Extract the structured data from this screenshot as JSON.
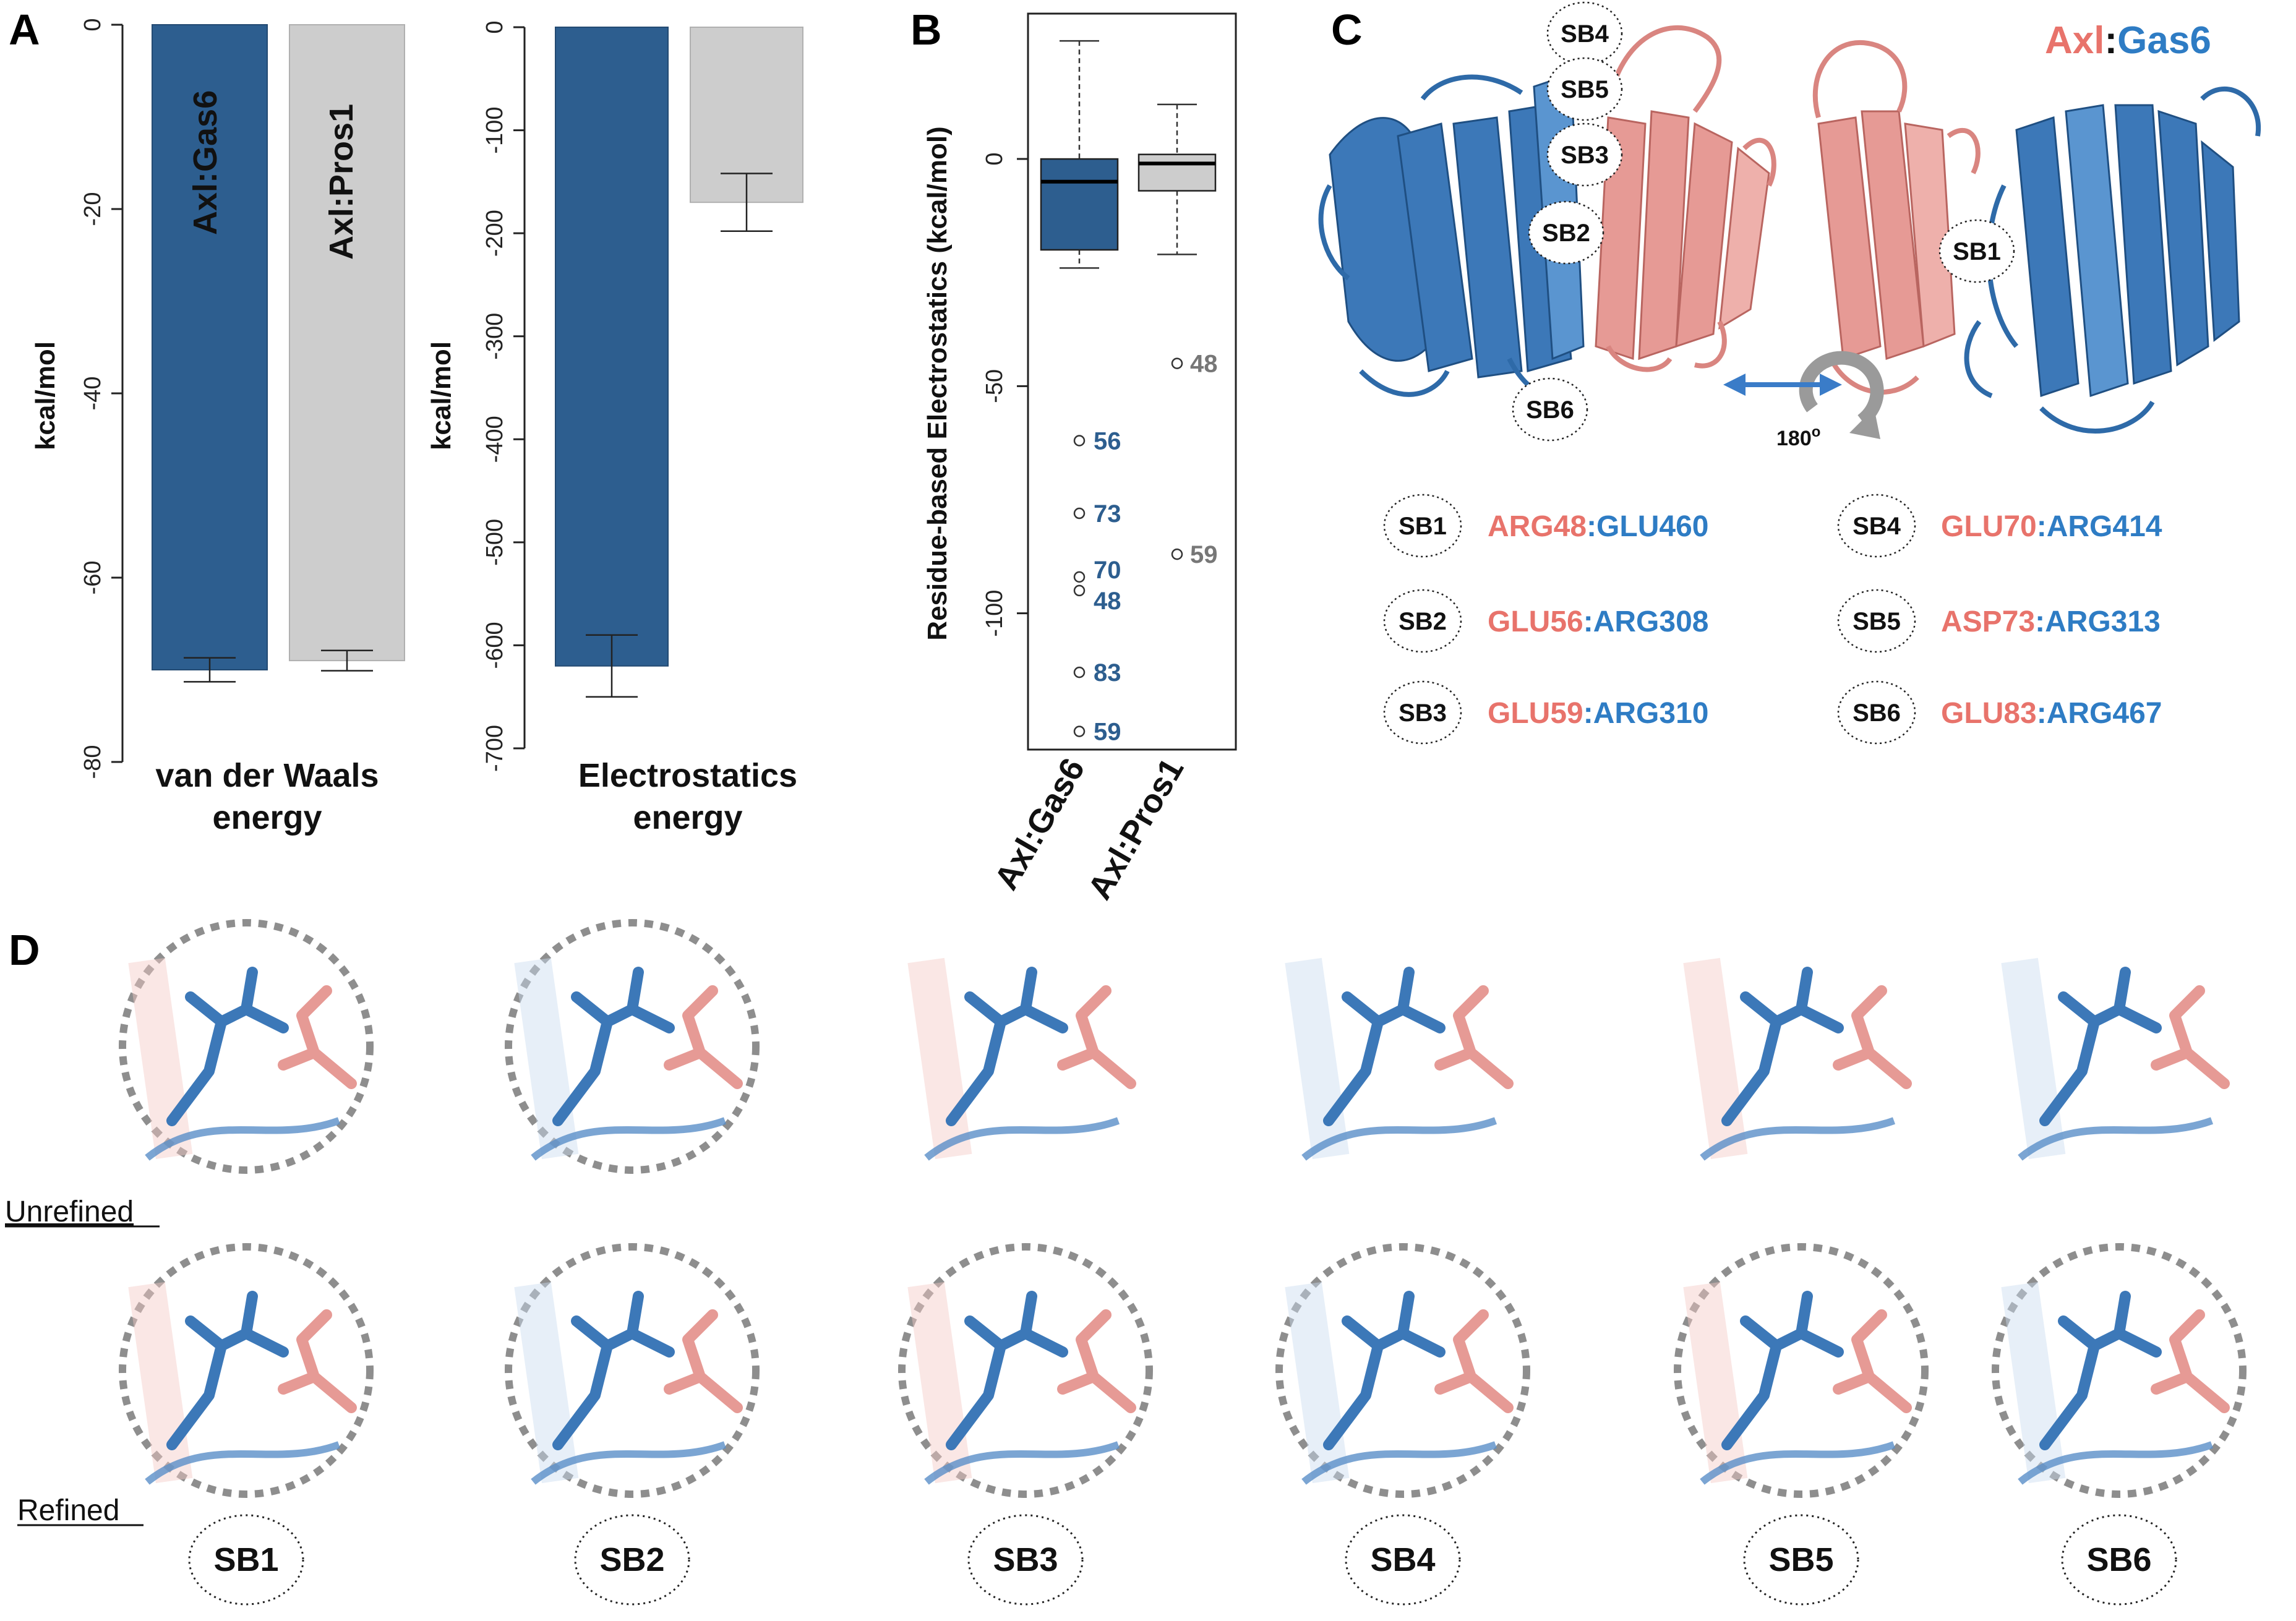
{
  "panels": {
    "a": "A",
    "b": "B",
    "c": "C",
    "d": "D"
  },
  "colors": {
    "gas6": "#2d5e8f",
    "pros1": "#cdcdcd",
    "red": "#e8736b",
    "blue": "#2e7cc4",
    "ribbonBlue": "#3c78b8",
    "ribbonPink": "#e69a95"
  },
  "chart_data": [
    {
      "type": "bar",
      "title": "",
      "xlabel": "van der Waals energy",
      "xlabel_lines": [
        "van der Waals",
        "energy"
      ],
      "ylabel": "kcal/mol",
      "ylim": [
        -80,
        0
      ],
      "yticks": [
        "0",
        "-20",
        "-40",
        "-60",
        "-80"
      ],
      "ytick_values": [
        0,
        -20,
        -40,
        -60,
        -80
      ],
      "categories": [
        "Axl:Gas6",
        "Axl:Pros1"
      ],
      "values": [
        -70,
        -69
      ],
      "error": [
        1.3,
        1.1
      ]
    },
    {
      "type": "bar",
      "title": "",
      "xlabel": "Electrostatics energy",
      "xlabel_lines": [
        "Electrostatics",
        "energy"
      ],
      "ylabel": "kcal/mol",
      "ylim": [
        -700,
        0
      ],
      "yticks": [
        "0",
        "-100",
        "-200",
        "-300",
        "-400",
        "-500",
        "-600",
        "-700"
      ],
      "ytick_values": [
        0,
        -100,
        -200,
        -300,
        -400,
        -500,
        -600,
        -700
      ],
      "categories": [
        "Axl:Gas6",
        "Axl:Pros1"
      ],
      "values": [
        -620,
        -170
      ],
      "error": [
        30,
        28
      ]
    },
    {
      "type": "box",
      "title": "",
      "ylabel": "Residue-based Electrostatics (kcal/mol)",
      "ylim": [
        -130,
        32
      ],
      "yticks": [
        "0",
        "-50",
        "-100"
      ],
      "ytick_values": [
        0,
        -50,
        -100
      ],
      "categories": [
        "Axl:Gas6",
        "Axl:Pros1"
      ],
      "boxes": [
        {
          "name": "Axl:Gas6",
          "whisker_low": -24,
          "q1": -20,
          "median": -5,
          "q3": 0,
          "whisker_high": 26
        },
        {
          "name": "Axl:Pros1",
          "whisker_low": -21,
          "q1": -7,
          "median": -1,
          "q3": 1,
          "whisker_high": 12
        }
      ],
      "outliers": [
        {
          "series": "Axl:Gas6",
          "value": -62,
          "label": "56"
        },
        {
          "series": "Axl:Gas6",
          "value": -78,
          "label": "73"
        },
        {
          "series": "Axl:Gas6",
          "value": -92,
          "label": "70"
        },
        {
          "series": "Axl:Gas6",
          "value": -95,
          "label": "48"
        },
        {
          "series": "Axl:Gas6",
          "value": -113,
          "label": "83"
        },
        {
          "series": "Axl:Gas6",
          "value": -126,
          "label": "59"
        },
        {
          "series": "Axl:Pros1",
          "value": -45,
          "label": "48"
        },
        {
          "series": "Axl:Pros1",
          "value": -87,
          "label": "59"
        }
      ]
    }
  ],
  "panelC": {
    "title_left": "Axl",
    "title_colon": ":",
    "title_right": "Gas6",
    "rotation": "180",
    "rotation_unit": "o",
    "structure_labels": [
      "SB4",
      "SB5",
      "SB3",
      "SB2",
      "SB1",
      "SB6"
    ],
    "pairs": [
      {
        "sb": "SB1",
        "left": "ARG48",
        "sep": ":",
        "right": "GLU460"
      },
      {
        "sb": "SB2",
        "left": "GLU56",
        "sep": ":",
        "right": "ARG308"
      },
      {
        "sb": "SB3",
        "left": "GLU59",
        "sep": ":",
        "right": "ARG310"
      },
      {
        "sb": "SB4",
        "left": "GLU70",
        "sep": ":",
        "right": "ARG414"
      },
      {
        "sb": "SB5",
        "left": "ASP73",
        "sep": ":",
        "right": "ARG313"
      },
      {
        "sb": "SB6",
        "left": "GLU83",
        "sep": ":",
        "right": "ARG467"
      }
    ]
  },
  "panelD": {
    "row_labels": [
      "Unrefined",
      "Refined"
    ],
    "columns": [
      "SB1",
      "SB2",
      "SB3",
      "SB4",
      "SB5",
      "SB6"
    ]
  }
}
